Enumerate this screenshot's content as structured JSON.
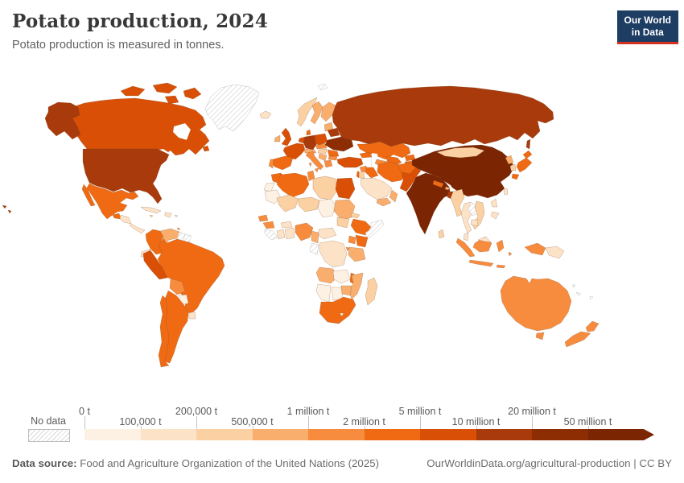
{
  "header": {
    "title": "Potato production, 2024",
    "subtitle": "Potato production is measured in tonnes.",
    "logo": {
      "line1": "Our World",
      "line2": "in Data",
      "bg_color": "#1d3d63",
      "accent_color": "#d7301f"
    }
  },
  "legend": {
    "no_data_label": "No data"
  },
  "footer": {
    "source_label": "Data source:",
    "source_text": " Food and Agriculture Organization of the United Nations (2025)",
    "credit_text": "OurWorldinData.org/agricultural-production | CC BY"
  },
  "chart_data": {
    "type": "choropleth",
    "title": "Potato production, 2024",
    "unit": "tonnes",
    "no_data_label": "No data",
    "bin_thresholds": [
      "0 t",
      "100,000 t",
      "200,000 t",
      "500,000 t",
      "1 million t",
      "2 million t",
      "5 million t",
      "10 million t",
      "20 million t",
      "50 million t"
    ],
    "bin_colors": [
      "#fdf1e3",
      "#fce3c8",
      "#fbd0a3",
      "#f9ae6d",
      "#f78c3e",
      "#ef6a13",
      "#d94f05",
      "#a83a0b",
      "#8c2d04",
      "#7b2503"
    ],
    "countries": [
      {
        "id": "greenland",
        "name": "Greenland",
        "bin": null
      },
      {
        "id": "svalbard",
        "name": "Svalbard",
        "bin": null
      },
      {
        "id": "canada",
        "name": "Canada",
        "bin": 6
      },
      {
        "id": "usa",
        "name": "United States",
        "bin": 7
      },
      {
        "id": "mexico",
        "name": "Mexico",
        "bin": 5
      },
      {
        "id": "guatemala",
        "name": "Guatemala",
        "bin": 5
      },
      {
        "id": "honduras-nicaragua",
        "name": "Honduras & Nicaragua",
        "bin": 1
      },
      {
        "id": "costa-rica-panama",
        "name": "Costa Rica & Panama",
        "bin": 1
      },
      {
        "id": "cuba",
        "name": "Cuba",
        "bin": 1
      },
      {
        "id": "hispaniola",
        "name": "Haiti & Dominican Republic",
        "bin": 1
      },
      {
        "id": "jamaica",
        "name": "Jamaica",
        "bin": 2
      },
      {
        "id": "puerto-rico",
        "name": "Puerto Rico",
        "bin": 1
      },
      {
        "id": "trinidad",
        "name": "Trinidad and Tobago",
        "bin": 4
      },
      {
        "id": "colombia",
        "name": "Colombia",
        "bin": 5
      },
      {
        "id": "venezuela",
        "name": "Venezuela",
        "bin": 3
      },
      {
        "id": "guyana",
        "name": "Guyana",
        "bin": null
      },
      {
        "id": "suriname",
        "name": "Suriname & French Guiana",
        "bin": null
      },
      {
        "id": "ecuador",
        "name": "Ecuador",
        "bin": 1
      },
      {
        "id": "peru",
        "name": "Peru",
        "bin": 6
      },
      {
        "id": "brazil",
        "name": "Brazil",
        "bin": 5
      },
      {
        "id": "bolivia",
        "name": "Bolivia",
        "bin": 4
      },
      {
        "id": "paraguay",
        "name": "Paraguay",
        "bin": 0
      },
      {
        "id": "uruguay",
        "name": "Uruguay",
        "bin": 1
      },
      {
        "id": "argentina",
        "name": "Argentina",
        "bin": 5
      },
      {
        "id": "chile",
        "name": "Chile",
        "bin": 5
      },
      {
        "id": "iceland",
        "name": "Iceland",
        "bin": 1
      },
      {
        "id": "norway",
        "name": "Norway",
        "bin": 2
      },
      {
        "id": "sweden",
        "name": "Sweden",
        "bin": 3
      },
      {
        "id": "finland",
        "name": "Finland",
        "bin": 3
      },
      {
        "id": "baltic-states",
        "name": "Baltic states",
        "bin": 3
      },
      {
        "id": "uk",
        "name": "United Kingdom",
        "bin": 6
      },
      {
        "id": "ireland",
        "name": "Ireland",
        "bin": 3
      },
      {
        "id": "denmark",
        "name": "Denmark",
        "bin": 5
      },
      {
        "id": "germany",
        "name": "Germany",
        "bin": 7
      },
      {
        "id": "netherlands-belgium",
        "name": "Netherlands & Belgium",
        "bin": 6
      },
      {
        "id": "france",
        "name": "France",
        "bin": 6
      },
      {
        "id": "spain",
        "name": "Spain",
        "bin": 5
      },
      {
        "id": "portugal",
        "name": "Portugal",
        "bin": 4
      },
      {
        "id": "switzerland-austria",
        "name": "Switzerland & Austria",
        "bin": 3
      },
      {
        "id": "italy",
        "name": "Italy",
        "bin": 4
      },
      {
        "id": "czech-slovakia",
        "name": "Czechia & Slovakia",
        "bin": 4
      },
      {
        "id": "hungary",
        "name": "Hungary",
        "bin": 2
      },
      {
        "id": "poland",
        "name": "Poland",
        "bin": 6
      },
      {
        "id": "belarus",
        "name": "Belarus",
        "bin": 7
      },
      {
        "id": "ukraine",
        "name": "Ukraine",
        "bin": 8
      },
      {
        "id": "romania",
        "name": "Romania",
        "bin": 5
      },
      {
        "id": "balkans",
        "name": "Western Balkans",
        "bin": 3
      },
      {
        "id": "bulgaria",
        "name": "Bulgaria",
        "bin": 4
      },
      {
        "id": "greece",
        "name": "Greece",
        "bin": 4
      },
      {
        "id": "russia",
        "name": "Russia",
        "bin": 7
      },
      {
        "id": "kazakhstan",
        "name": "Kazakhstan",
        "bin": 5
      },
      {
        "id": "caucasus",
        "name": "Georgia & Azerbaijan",
        "bin": 5
      },
      {
        "id": "turkey",
        "name": "Turkey",
        "bin": 6
      },
      {
        "id": "syria",
        "name": "Syria",
        "bin": 4
      },
      {
        "id": "iraq",
        "name": "Iraq",
        "bin": 5
      },
      {
        "id": "iran",
        "name": "Iran",
        "bin": 5
      },
      {
        "id": "israel",
        "name": "Israel",
        "bin": 5
      },
      {
        "id": "jordan",
        "name": "Jordan",
        "bin": 2
      },
      {
        "id": "saudi-arabia",
        "name": "Saudi Arabia",
        "bin": 1
      },
      {
        "id": "yemen",
        "name": "Yemen",
        "bin": 3
      },
      {
        "id": "oman",
        "name": "Oman",
        "bin": 3
      },
      {
        "id": "afghanistan",
        "name": "Afghanistan",
        "bin": 5
      },
      {
        "id": "turkmenistan",
        "name": "Turkmenistan",
        "bin": 4
      },
      {
        "id": "uzbekistan",
        "name": "Uzbekistan",
        "bin": 5
      },
      {
        "id": "kyrgyzstan",
        "name": "Kyrgyzstan",
        "bin": 5
      },
      {
        "id": "tajikistan",
        "name": "Tajikistan",
        "bin": 5
      },
      {
        "id": "pakistan",
        "name": "Pakistan",
        "bin": 6
      },
      {
        "id": "india",
        "name": "India",
        "bin": 9
      },
      {
        "id": "nepal",
        "name": "Nepal",
        "bin": 5
      },
      {
        "id": "bhutan",
        "name": "Bhutan",
        "bin": 3
      },
      {
        "id": "bangladesh",
        "name": "Bangladesh",
        "bin": 7
      },
      {
        "id": "sri-lanka",
        "name": "Sri Lanka",
        "bin": 2
      },
      {
        "id": "china",
        "name": "China",
        "bin": 9
      },
      {
        "id": "mongolia",
        "name": "Mongolia",
        "bin": 2
      },
      {
        "id": "taiwan",
        "name": "Taiwan",
        "bin": 1
      },
      {
        "id": "north-korea",
        "name": "North Korea",
        "bin": 3
      },
      {
        "id": "south-korea",
        "name": "South Korea",
        "bin": 2
      },
      {
        "id": "japan",
        "name": "Japan",
        "bin": 5
      },
      {
        "id": "myanmar",
        "name": "Myanmar",
        "bin": 2
      },
      {
        "id": "thailand",
        "name": "Thailand",
        "bin": 1
      },
      {
        "id": "laos",
        "name": "Laos",
        "bin": null
      },
      {
        "id": "vietnam",
        "name": "Vietnam",
        "bin": 2
      },
      {
        "id": "cambodia",
        "name": "Cambodia",
        "bin": 1
      },
      {
        "id": "malaysia",
        "name": "Malaysia",
        "bin": 1
      },
      {
        "id": "indonesia",
        "name": "Indonesia",
        "bin": 4
      },
      {
        "id": "papua-new-guinea",
        "name": "Papua New Guinea",
        "bin": 1
      },
      {
        "id": "philippines",
        "name": "Philippines",
        "bin": 1
      },
      {
        "id": "australia",
        "name": "Australia",
        "bin": 4
      },
      {
        "id": "new-zealand",
        "name": "New Zealand",
        "bin": 4
      },
      {
        "id": "pacific-islands",
        "name": "Pacific islands",
        "bin": null
      },
      {
        "id": "morocco",
        "name": "Morocco",
        "bin": 5
      },
      {
        "id": "western-sahara",
        "name": "Western Sahara",
        "bin": 0
      },
      {
        "id": "algeria",
        "name": "Algeria",
        "bin": 5
      },
      {
        "id": "tunisia",
        "name": "Tunisia",
        "bin": 4
      },
      {
        "id": "libya",
        "name": "Libya",
        "bin": 2
      },
      {
        "id": "egypt",
        "name": "Egypt",
        "bin": 6
      },
      {
        "id": "mauritania",
        "name": "Mauritania",
        "bin": 0
      },
      {
        "id": "mali",
        "name": "Mali",
        "bin": 2
      },
      {
        "id": "niger",
        "name": "Niger",
        "bin": 2
      },
      {
        "id": "chad",
        "name": "Chad",
        "bin": 0
      },
      {
        "id": "sudan",
        "name": "Sudan",
        "bin": 3
      },
      {
        "id": "eritrea",
        "name": "Eritrea",
        "bin": 2
      },
      {
        "id": "senegal",
        "name": "Senegal",
        "bin": 4
      },
      {
        "id": "guinea",
        "name": "Guinea",
        "bin": 4
      },
      {
        "id": "sierra-leone-liberia",
        "name": "Sierra Leone & Liberia",
        "bin": null
      },
      {
        "id": "ivory-coast",
        "name": "Côte d'Ivoire",
        "bin": 1
      },
      {
        "id": "ghana-togo-benin",
        "name": "Ghana, Togo & Benin",
        "bin": 1
      },
      {
        "id": "burkina-faso",
        "name": "Burkina Faso",
        "bin": 1
      },
      {
        "id": "nigeria",
        "name": "Nigeria",
        "bin": 4
      },
      {
        "id": "cameroon",
        "name": "Cameroon",
        "bin": 3
      },
      {
        "id": "central-african-republic",
        "name": "Central African Republic",
        "bin": 1
      },
      {
        "id": "south-sudan",
        "name": "South Sudan",
        "bin": 2
      },
      {
        "id": "ethiopia",
        "name": "Ethiopia",
        "bin": 5
      },
      {
        "id": "somalia",
        "name": "Somalia",
        "bin": null
      },
      {
        "id": "kenya",
        "name": "Kenya",
        "bin": 5
      },
      {
        "id": "uganda",
        "name": "Uganda",
        "bin": 4
      },
      {
        "id": "dr-congo",
        "name": "Democratic Republic of Congo",
        "bin": 1
      },
      {
        "id": "congo-gabon",
        "name": "Congo & Gabon",
        "bin": null
      },
      {
        "id": "rwanda-burundi",
        "name": "Rwanda & Burundi",
        "bin": 4
      },
      {
        "id": "tanzania",
        "name": "Tanzania",
        "bin": 3
      },
      {
        "id": "angola",
        "name": "Angola",
        "bin": 3
      },
      {
        "id": "zambia",
        "name": "Zambia",
        "bin": 0
      },
      {
        "id": "malawi",
        "name": "Malawi",
        "bin": 5
      },
      {
        "id": "mozambique",
        "name": "Mozambique",
        "bin": 3
      },
      {
        "id": "zimbabwe",
        "name": "Zimbabwe",
        "bin": 3
      },
      {
        "id": "botswana",
        "name": "Botswana",
        "bin": 0
      },
      {
        "id": "namibia",
        "name": "Namibia",
        "bin": 0
      },
      {
        "id": "south-africa",
        "name": "South Africa",
        "bin": 5
      },
      {
        "id": "lesotho",
        "name": "Lesotho",
        "bin": 0
      },
      {
        "id": "madagascar",
        "name": "Madagascar",
        "bin": 2
      }
    ]
  }
}
